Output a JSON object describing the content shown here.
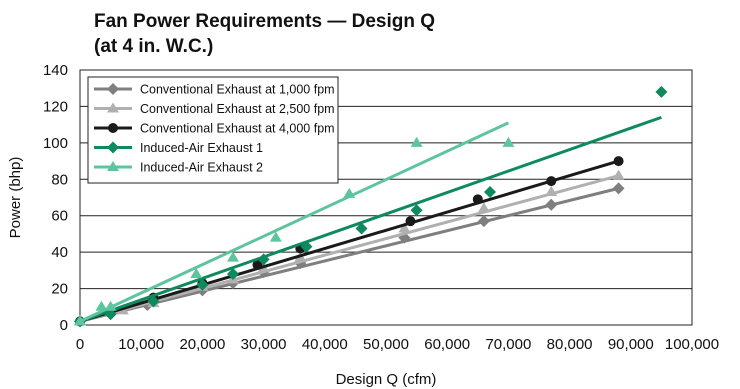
{
  "chart_data": {
    "type": "scatter",
    "title": [
      "Fan Power Requirements — Design Q",
      "(at 4 in. W.C.)"
    ],
    "xlabel": "Design Q (cfm)",
    "ylabel": "Power (bhp)",
    "xlim": [
      0,
      100000
    ],
    "ylim": [
      0,
      140
    ],
    "xticks": [
      0,
      10000,
      20000,
      30000,
      40000,
      50000,
      60000,
      70000,
      80000,
      90000,
      100000
    ],
    "xtick_labels": [
      "0",
      "10,000",
      "20,000",
      "30,000",
      "40,000",
      "50,000",
      "60,000",
      "70,000",
      "80,000",
      "90,000",
      "100,000"
    ],
    "yticks": [
      0,
      20,
      40,
      60,
      80,
      100,
      120,
      140
    ],
    "ytick_labels": [
      "0",
      "20",
      "40",
      "60",
      "80",
      "100",
      "120",
      "140"
    ],
    "grid": "horizontal",
    "legend_position": "top-left",
    "series": [
      {
        "name": "Conventional Exhaust at 1,000 fpm",
        "color": "#7f7f7f",
        "marker": "diamond",
        "trend": [
          [
            0,
            2
          ],
          [
            88000,
            75
          ]
        ],
        "points": [
          [
            0,
            2
          ],
          [
            5000,
            6
          ],
          [
            11000,
            11
          ],
          [
            20000,
            19
          ],
          [
            25000,
            23
          ],
          [
            30000,
            29
          ],
          [
            36000,
            34
          ],
          [
            53000,
            48
          ],
          [
            66000,
            57
          ],
          [
            77000,
            66
          ],
          [
            88000,
            75
          ]
        ]
      },
      {
        "name": "Conventional Exhaust at 2,500 fpm",
        "color": "#b0b0b0",
        "marker": "triangle",
        "trend": [
          [
            0,
            2
          ],
          [
            88000,
            82
          ]
        ],
        "points": [
          [
            0,
            2
          ],
          [
            7000,
            8
          ],
          [
            12000,
            12
          ],
          [
            20000,
            21
          ],
          [
            25000,
            25
          ],
          [
            30000,
            31
          ],
          [
            36000,
            37
          ],
          [
            53000,
            53
          ],
          [
            66000,
            64
          ],
          [
            77000,
            73
          ],
          [
            88000,
            82
          ]
        ]
      },
      {
        "name": "Conventional Exhaust at 4,000 fpm",
        "color": "#1a1a1a",
        "marker": "circle",
        "trend": [
          [
            0,
            2
          ],
          [
            88000,
            90
          ]
        ],
        "points": [
          [
            0,
            2
          ],
          [
            12000,
            15
          ],
          [
            20000,
            23
          ],
          [
            29000,
            33
          ],
          [
            36000,
            42
          ],
          [
            54000,
            57
          ],
          [
            65000,
            69
          ],
          [
            77000,
            79
          ],
          [
            88000,
            90
          ]
        ]
      },
      {
        "name": "Induced-Air Exhaust 1",
        "color": "#0f8a5f",
        "marker": "diamond",
        "trend": [
          [
            0,
            2
          ],
          [
            95000,
            114
          ]
        ],
        "points": [
          [
            0,
            2
          ],
          [
            5000,
            6
          ],
          [
            12000,
            13
          ],
          [
            20000,
            22
          ],
          [
            25000,
            28
          ],
          [
            30000,
            36
          ],
          [
            37000,
            43
          ],
          [
            46000,
            53
          ],
          [
            55000,
            63
          ],
          [
            67000,
            73
          ],
          [
            95000,
            128
          ]
        ]
      },
      {
        "name": "Induced-Air Exhaust 2",
        "color": "#5ec4a0",
        "marker": "triangle",
        "trend": [
          [
            0,
            2
          ],
          [
            70000,
            111
          ]
        ],
        "points": [
          [
            0,
            2
          ],
          [
            3500,
            10
          ],
          [
            5000,
            10
          ],
          [
            19000,
            28
          ],
          [
            25000,
            37
          ],
          [
            32000,
            48
          ],
          [
            44000,
            72
          ],
          [
            55000,
            100
          ],
          [
            70000,
            100
          ]
        ]
      }
    ]
  }
}
